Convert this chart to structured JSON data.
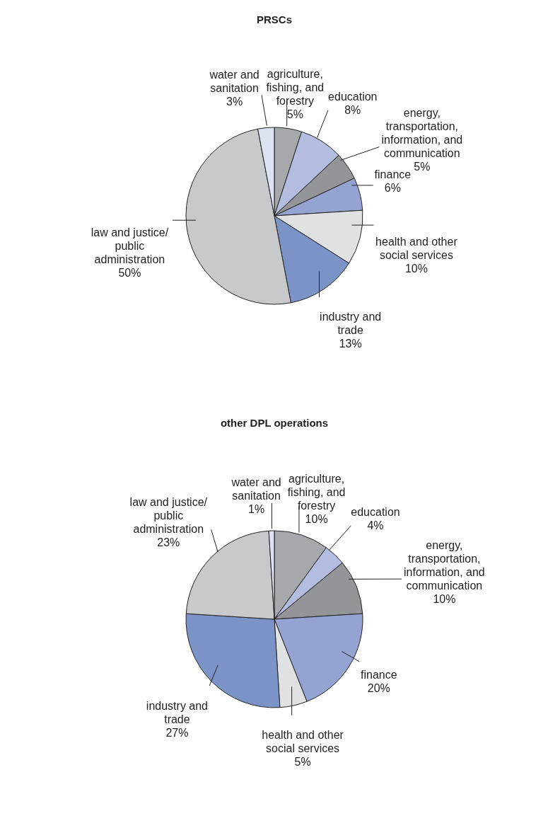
{
  "chart_data": [
    {
      "type": "pie",
      "title": "PRSCs",
      "categories": [
        "agriculture, fishing, and forestry",
        "education",
        "energy, transportation, information, and communication",
        "finance",
        "health and other social services",
        "industry and trade",
        "law and justice/public administration",
        "water and sanitation"
      ],
      "values": [
        5,
        8,
        5,
        6,
        10,
        13,
        50,
        3
      ],
      "value_labels": [
        "5%",
        "8%",
        "5%",
        "6%",
        "10%",
        "13%",
        "50%",
        "3%"
      ],
      "colors": [
        "#a6a8ab",
        "#b4bde0",
        "#949599",
        "#94a3d1",
        "#e0e1e2",
        "#7b93c6",
        "#c8c9cb",
        "#dde2f2"
      ]
    },
    {
      "type": "pie",
      "title": "other DPL operations",
      "categories": [
        "agriculture, fishing, and forestry",
        "education",
        "energy, transportation, information, and communication",
        "finance",
        "health and other social services",
        "industry and trade",
        "law and justice/public administration",
        "water and sanitation"
      ],
      "values": [
        10,
        4,
        10,
        20,
        5,
        27,
        23,
        1
      ],
      "value_labels": [
        "10%",
        "4%",
        "10%",
        "20%",
        "5%",
        "27%",
        "23%",
        "1%"
      ],
      "colors": [
        "#a6a8ab",
        "#b4bde0",
        "#949599",
        "#94a3d1",
        "#e0e1e2",
        "#7b93c6",
        "#c8c9cb",
        "#dde2f2"
      ]
    }
  ]
}
